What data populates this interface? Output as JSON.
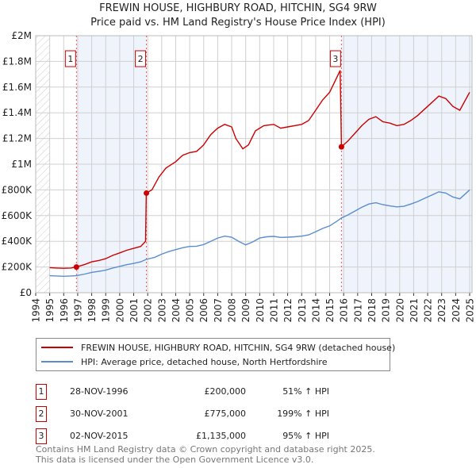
{
  "chart_data": {
    "type": "line",
    "title": "FREWIN HOUSE, HIGHBURY ROAD, HITCHIN, SG4 9RW",
    "subtitle": "Price paid vs. HM Land Registry's House Price Index (HPI)",
    "xlabel": "",
    "ylabel": "",
    "xlim": [
      1994,
      2025
    ],
    "ylim": [
      0,
      2000000
    ],
    "x_ticks": [
      "1994",
      "1995",
      "1996",
      "1997",
      "1998",
      "1999",
      "2000",
      "2001",
      "2002",
      "2003",
      "2004",
      "2005",
      "2006",
      "2007",
      "2008",
      "2009",
      "2010",
      "2011",
      "2012",
      "2013",
      "2014",
      "2015",
      "2016",
      "2017",
      "2018",
      "2019",
      "2020",
      "2021",
      "2022",
      "2023",
      "2024",
      "2025"
    ],
    "y_ticks": [
      {
        "v": 0,
        "label": "£0"
      },
      {
        "v": 200000,
        "label": "£200K"
      },
      {
        "v": 400000,
        "label": "£400K"
      },
      {
        "v": 600000,
        "label": "£600K"
      },
      {
        "v": 800000,
        "label": "£800K"
      },
      {
        "v": 1000000,
        "label": "£1M"
      },
      {
        "v": 1200000,
        "label": "£1.2M"
      },
      {
        "v": 1400000,
        "label": "£1.4M"
      },
      {
        "v": 1600000,
        "label": "£1.6M"
      },
      {
        "v": 1800000,
        "label": "£1.8M"
      },
      {
        "v": 2000000,
        "label": "£2M"
      }
    ],
    "grid": true,
    "series": [
      {
        "name": "FREWIN HOUSE, HIGHBURY ROAD, HITCHIN, SG4 9RW (detached house)",
        "color": "#cc0000",
        "points": [
          [
            1995,
            195000
          ],
          [
            1995.5,
            192000
          ],
          [
            1996,
            190000
          ],
          [
            1996.5,
            192000
          ],
          [
            1996.9,
            200000
          ],
          [
            1997.5,
            220000
          ],
          [
            1998,
            240000
          ],
          [
            1998.5,
            250000
          ],
          [
            1999,
            265000
          ],
          [
            1999.5,
            290000
          ],
          [
            2000,
            310000
          ],
          [
            2000.5,
            330000
          ],
          [
            2001,
            345000
          ],
          [
            2001.5,
            360000
          ],
          [
            2001.85,
            400000
          ],
          [
            2001.9,
            775000
          ],
          [
            2002.3,
            800000
          ],
          [
            2002.8,
            900000
          ],
          [
            2003.3,
            970000
          ],
          [
            2004,
            1020000
          ],
          [
            2004.5,
            1070000
          ],
          [
            2005,
            1090000
          ],
          [
            2005.5,
            1100000
          ],
          [
            2006,
            1150000
          ],
          [
            2006.5,
            1230000
          ],
          [
            2007,
            1280000
          ],
          [
            2007.5,
            1310000
          ],
          [
            2008,
            1290000
          ],
          [
            2008.3,
            1200000
          ],
          [
            2008.8,
            1120000
          ],
          [
            2009.2,
            1150000
          ],
          [
            2009.7,
            1260000
          ],
          [
            2010.3,
            1300000
          ],
          [
            2011,
            1310000
          ],
          [
            2011.5,
            1280000
          ],
          [
            2012,
            1290000
          ],
          [
            2012.5,
            1300000
          ],
          [
            2013,
            1310000
          ],
          [
            2013.5,
            1340000
          ],
          [
            2014,
            1420000
          ],
          [
            2014.5,
            1500000
          ],
          [
            2015,
            1560000
          ],
          [
            2015.4,
            1650000
          ],
          [
            2015.75,
            1730000
          ],
          [
            2015.84,
            1135000
          ],
          [
            2016.3,
            1180000
          ],
          [
            2016.8,
            1240000
          ],
          [
            2017.3,
            1300000
          ],
          [
            2017.8,
            1350000
          ],
          [
            2018.3,
            1370000
          ],
          [
            2018.8,
            1330000
          ],
          [
            2019.3,
            1320000
          ],
          [
            2019.8,
            1300000
          ],
          [
            2020.3,
            1310000
          ],
          [
            2020.8,
            1340000
          ],
          [
            2021.3,
            1380000
          ],
          [
            2021.8,
            1430000
          ],
          [
            2022.3,
            1480000
          ],
          [
            2022.8,
            1530000
          ],
          [
            2023.3,
            1510000
          ],
          [
            2023.8,
            1450000
          ],
          [
            2024.3,
            1420000
          ],
          [
            2024.7,
            1500000
          ],
          [
            2025,
            1560000
          ]
        ]
      },
      {
        "name": "HPI: Average price, detached house, North Hertfordshire",
        "color": "#5b8dd0",
        "points": [
          [
            1995,
            132000
          ],
          [
            1995.5,
            130000
          ],
          [
            1996,
            128000
          ],
          [
            1996.5,
            130000
          ],
          [
            1996.9,
            132000
          ],
          [
            1997.5,
            145000
          ],
          [
            1998,
            158000
          ],
          [
            1998.5,
            166000
          ],
          [
            1999,
            175000
          ],
          [
            1999.5,
            192000
          ],
          [
            2000,
            205000
          ],
          [
            2000.5,
            218000
          ],
          [
            2001,
            228000
          ],
          [
            2001.5,
            240000
          ],
          [
            2001.9,
            259000
          ],
          [
            2002.5,
            275000
          ],
          [
            2003,
            300000
          ],
          [
            2003.5,
            320000
          ],
          [
            2004,
            335000
          ],
          [
            2004.5,
            350000
          ],
          [
            2005,
            360000
          ],
          [
            2005.5,
            362000
          ],
          [
            2006,
            375000
          ],
          [
            2006.5,
            400000
          ],
          [
            2007,
            425000
          ],
          [
            2007.5,
            440000
          ],
          [
            2008,
            432000
          ],
          [
            2008.5,
            400000
          ],
          [
            2009,
            372000
          ],
          [
            2009.5,
            395000
          ],
          [
            2010,
            425000
          ],
          [
            2010.5,
            435000
          ],
          [
            2011,
            438000
          ],
          [
            2011.5,
            430000
          ],
          [
            2012,
            432000
          ],
          [
            2012.5,
            435000
          ],
          [
            2013,
            440000
          ],
          [
            2013.5,
            450000
          ],
          [
            2014,
            475000
          ],
          [
            2014.5,
            500000
          ],
          [
            2015,
            520000
          ],
          [
            2015.5,
            555000
          ],
          [
            2015.84,
            582000
          ],
          [
            2016.3,
            605000
          ],
          [
            2016.8,
            635000
          ],
          [
            2017.3,
            665000
          ],
          [
            2017.8,
            690000
          ],
          [
            2018.3,
            700000
          ],
          [
            2018.8,
            685000
          ],
          [
            2019.3,
            675000
          ],
          [
            2019.8,
            668000
          ],
          [
            2020.3,
            672000
          ],
          [
            2020.8,
            690000
          ],
          [
            2021.3,
            710000
          ],
          [
            2021.8,
            735000
          ],
          [
            2022.3,
            760000
          ],
          [
            2022.8,
            785000
          ],
          [
            2023.3,
            775000
          ],
          [
            2023.8,
            745000
          ],
          [
            2024.3,
            730000
          ],
          [
            2024.7,
            770000
          ],
          [
            2025,
            800000
          ]
        ]
      }
    ],
    "sales": [
      {
        "label": "1",
        "x": 1996.91
      },
      {
        "label": "2",
        "x": 2001.91
      },
      {
        "label": "3",
        "x": 2015.84
      }
    ],
    "legend": "below"
  },
  "sales_table": [
    {
      "num": "1",
      "date": "28-NOV-1996",
      "price": "£200,000",
      "hpi": "51% ↑ HPI"
    },
    {
      "num": "2",
      "date": "30-NOV-2001",
      "price": "£775,000",
      "hpi": "199% ↑ HPI"
    },
    {
      "num": "3",
      "date": "02-NOV-2015",
      "price": "£1,135,000",
      "hpi": "95% ↑ HPI"
    }
  ],
  "footer": {
    "line1": "Contains HM Land Registry data © Crown copyright and database right 2025.",
    "line2": "This data is licensed under the Open Government Licence v3.0."
  }
}
